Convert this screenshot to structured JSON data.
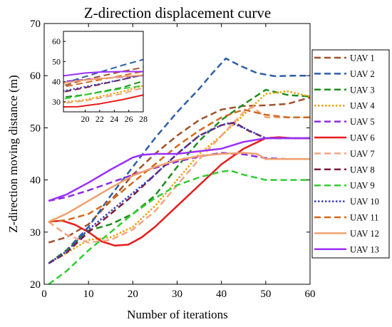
{
  "chart_data": {
    "type": "line",
    "title": "Z-direction displacement curve",
    "xlabel": "Number of iterations",
    "ylabel": "Z-direction moving distance (m)",
    "xlim": [
      0,
      60
    ],
    "ylim": [
      20,
      70
    ],
    "xticks": [
      0,
      10,
      20,
      30,
      40,
      50,
      60
    ],
    "yticks": [
      20,
      30,
      40,
      50,
      60,
      70
    ],
    "grid": false,
    "legend_position": "right-outside",
    "series": [
      {
        "name": "UAV 1",
        "color": "#a0522d",
        "dash": "dashed",
        "width": 2.5,
        "x": [
          1,
          5,
          10,
          15,
          20,
          25,
          30,
          35,
          40,
          45,
          50,
          55,
          60
        ],
        "y": [
          28,
          29,
          31.5,
          36,
          41,
          45,
          48.5,
          51.5,
          53.5,
          54.2,
          54.3,
          54.6,
          55.8
        ]
      },
      {
        "name": "UAV 2",
        "color": "#2e5fa8",
        "dash": "dashed",
        "width": 2.5,
        "x": [
          1,
          5,
          10,
          15,
          20,
          25,
          30,
          35,
          38,
          41,
          44,
          48,
          52,
          56,
          60
        ],
        "y": [
          24,
          26.5,
          31,
          37,
          42.5,
          48,
          53,
          57.5,
          60.5,
          63.3,
          62,
          60.5,
          59.9,
          60,
          60
        ]
      },
      {
        "name": "UAV 3",
        "color": "#1e8c1e",
        "dash": "dashed",
        "width": 2.5,
        "x": [
          1,
          5,
          10,
          15,
          20,
          25,
          30,
          35,
          40,
          45,
          50,
          55,
          60
        ],
        "y": [
          24,
          26.5,
          30.3,
          31.5,
          33.5,
          37,
          42.5,
          47.5,
          51.5,
          54.5,
          57.3,
          56.3,
          56
        ]
      },
      {
        "name": "UAV 4",
        "color": "#f0a000",
        "dash": "dotted",
        "width": 2.5,
        "x": [
          1,
          5,
          10,
          15,
          20,
          25,
          30,
          35,
          40,
          45,
          50,
          55,
          60
        ],
        "y": [
          24,
          26,
          28.5,
          29,
          31,
          35,
          40,
          45,
          48.5,
          52.5,
          56.5,
          57,
          56
        ]
      },
      {
        "name": "UAV 5",
        "color": "#8a2be2",
        "dash": "dashed",
        "width": 2.5,
        "x": [
          1,
          5,
          10,
          15,
          20,
          25,
          30,
          35,
          40,
          45,
          50,
          55,
          60
        ],
        "y": [
          36,
          36.7,
          38,
          39.5,
          41,
          42.3,
          43.5,
          44.5,
          45.2,
          44.9,
          44.2,
          44,
          44
        ]
      },
      {
        "name": "UAV 6",
        "color": "#e81c1c",
        "dash": "solid",
        "width": 2.5,
        "x": [
          1,
          4,
          7,
          10,
          13,
          16,
          19,
          22,
          25,
          30,
          35,
          40,
          45,
          50,
          53,
          56,
          60
        ],
        "y": [
          32,
          32.2,
          31.4,
          30,
          28.2,
          27.4,
          27.6,
          29,
          31,
          35,
          39,
          43,
          46,
          48,
          48.2,
          48,
          48
        ]
      },
      {
        "name": "UAV 7",
        "color": "#f4a582",
        "dash": "dashed",
        "width": 2.5,
        "x": [
          1,
          5,
          10,
          15,
          20,
          25,
          30,
          35,
          40,
          45,
          47,
          50,
          55,
          60
        ],
        "y": [
          32,
          29.5,
          28,
          28.5,
          30.5,
          34,
          39,
          44,
          48.5,
          53,
          54,
          52,
          52,
          52
        ]
      },
      {
        "name": "UAV 8",
        "color": "#7a1e3c",
        "dash": "dashed",
        "width": 2.5,
        "x": [
          1,
          5,
          10,
          15,
          20,
          25,
          30,
          35,
          40,
          43,
          46,
          50,
          55,
          60
        ],
        "y": [
          24,
          26,
          30,
          33.5,
          37,
          41,
          45,
          48.5,
          50.5,
          51,
          49.5,
          48,
          48,
          48
        ]
      },
      {
        "name": "UAV 9",
        "color": "#33cc33",
        "dash": "dashed",
        "width": 2.5,
        "x": [
          1,
          5,
          10,
          15,
          20,
          25,
          30,
          35,
          40,
          42,
          45,
          50,
          55,
          60
        ],
        "y": [
          20,
          22.5,
          26.5,
          30,
          33.5,
          36.5,
          39,
          40.5,
          41.6,
          41.8,
          41,
          40,
          40,
          40
        ]
      },
      {
        "name": "UAV 10",
        "color": "#3f3fbf",
        "dash": "dotted",
        "width": 2.5,
        "x": [
          1,
          5,
          10,
          15,
          20,
          25,
          30,
          35,
          40,
          42,
          45,
          50,
          55,
          60
        ],
        "y": [
          24,
          26.3,
          30.5,
          34,
          37.5,
          41,
          45,
          48.5,
          50.5,
          51,
          50,
          48,
          48,
          48
        ]
      },
      {
        "name": "UAV 11",
        "color": "#d2691e",
        "dash": "dashed",
        "width": 2.5,
        "x": [
          1,
          5,
          10,
          15,
          20,
          25,
          30,
          35,
          40,
          45,
          50,
          55,
          60
        ],
        "y": [
          32,
          32.3,
          33.5,
          36,
          39.5,
          43,
          46.5,
          49.5,
          52,
          53.5,
          52.5,
          52,
          52
        ]
      },
      {
        "name": "UAV 12",
        "color": "#f0a070",
        "dash": "solid",
        "width": 2.5,
        "x": [
          1,
          5,
          10,
          15,
          20,
          25,
          30,
          35,
          40,
          45,
          48,
          50,
          55,
          60
        ],
        "y": [
          32,
          33.5,
          36,
          38.5,
          40.8,
          42.5,
          43.8,
          44.6,
          45,
          45.2,
          45,
          44,
          44,
          44
        ]
      },
      {
        "name": "UAV 13",
        "color": "#9b30ff",
        "dash": "solid",
        "width": 2.5,
        "x": [
          1,
          5,
          10,
          15,
          20,
          22,
          25,
          30,
          35,
          40,
          45,
          50,
          55,
          60
        ],
        "y": [
          36,
          37.2,
          39.5,
          42,
          44.3,
          44.8,
          45,
          45,
          45.5,
          46,
          47.3,
          48,
          48,
          48
        ]
      }
    ],
    "inset": {
      "xlim": [
        17,
        28
      ],
      "ylim": [
        25,
        65
      ],
      "xticks": [
        20,
        22,
        24,
        26,
        28
      ],
      "yticks": [
        30,
        40,
        50,
        60
      ]
    }
  }
}
